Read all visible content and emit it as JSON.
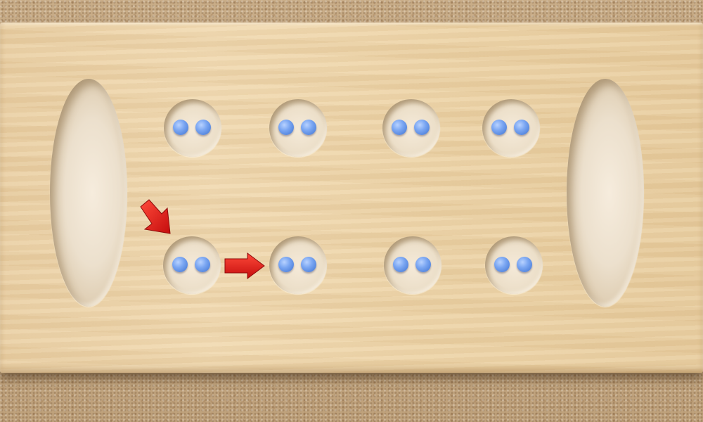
{
  "game": {
    "type": "mancala",
    "pit_color_seed": "#5b8ee6",
    "arrow_color": "#d81414",
    "stores": [
      {
        "id": "left-store",
        "seeds": 0
      },
      {
        "id": "right-store",
        "seeds": 0
      }
    ],
    "rows": [
      {
        "row": "top",
        "pits": [
          2,
          2,
          2,
          2
        ]
      },
      {
        "row": "bottom",
        "pits": [
          2,
          2,
          2,
          2
        ]
      }
    ],
    "hint_arrows": [
      {
        "direction": "down-right",
        "target": "bottom-pit-1"
      },
      {
        "direction": "right",
        "target": "bottom-pit-2"
      }
    ]
  }
}
